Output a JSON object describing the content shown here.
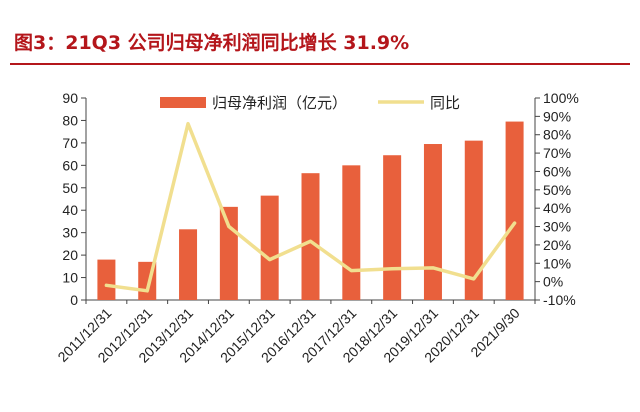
{
  "header": {
    "title": "图3：21Q3 公司归母净利润同比增长 31.9%"
  },
  "colors": {
    "title": "#b4161b",
    "bar": "#e8603c",
    "line": "#f1df8f"
  },
  "chart_data": {
    "type": "bar+line",
    "categories": [
      "2011/12/31",
      "2012/12/31",
      "2013/12/31",
      "2014/12/31",
      "2015/12/31",
      "2016/12/31",
      "2017/12/31",
      "2018/12/31",
      "2019/12/31",
      "2020/12/31",
      "2021/9/30"
    ],
    "series": [
      {
        "name": "归母净利润（亿元）",
        "type": "bar",
        "axis": "left",
        "values": [
          18,
          17,
          31.5,
          41.5,
          46.5,
          56.5,
          60,
          64.5,
          69.5,
          71,
          79.5
        ]
      },
      {
        "name": "同比",
        "type": "line",
        "axis": "right",
        "values": [
          -2,
          -5,
          86,
          30,
          12,
          22,
          6,
          7,
          7.5,
          1.5,
          31.9
        ]
      }
    ],
    "left_axis": {
      "ylim": [
        0,
        90
      ],
      "ticks": [
        "0",
        "10",
        "20",
        "30",
        "40",
        "50",
        "60",
        "70",
        "80",
        "90"
      ]
    },
    "right_axis": {
      "ylim": [
        -10,
        100
      ],
      "ticks": [
        "-10%",
        "0%",
        "10%",
        "20%",
        "30%",
        "40%",
        "50%",
        "60%",
        "70%",
        "80%",
        "90%",
        "100%"
      ]
    },
    "legend": {
      "position": "top-center",
      "bar_label": "归母净利润（亿元）",
      "line_label": "同比"
    },
    "grid": false
  }
}
